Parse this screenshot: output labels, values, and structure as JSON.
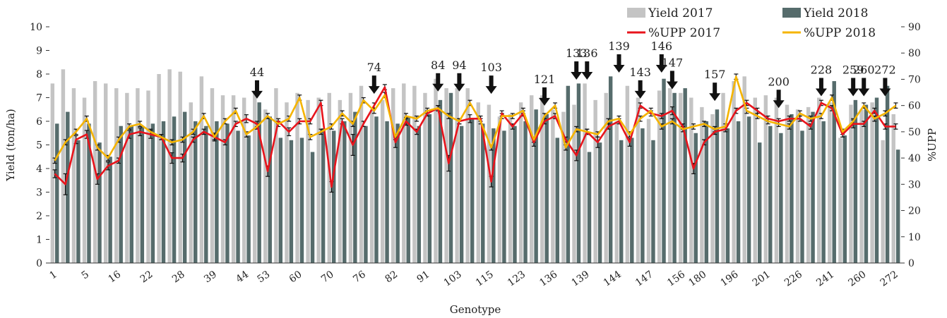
{
  "chart_data": {
    "type": "bar",
    "xlabel": "Genotype",
    "ylabel": "Yield (ton/ha)",
    "y2label": "%UPP",
    "ylim": [
      0,
      10
    ],
    "y2lim": [
      0,
      90
    ],
    "y_ticks": [
      "0",
      "1",
      "2",
      "3",
      "4",
      "5",
      "6",
      "7",
      "8",
      "9",
      "10"
    ],
    "y2_ticks": [
      "0",
      "10",
      "20",
      "30",
      "40",
      "50",
      "60",
      "70",
      "80",
      "90"
    ],
    "x_tick_labels": [
      "1",
      "5",
      "16",
      "22",
      "28",
      "39",
      "44",
      "53",
      "60",
      "70",
      "76",
      "82",
      "91",
      "103",
      "115",
      "123",
      "136",
      "139",
      "144",
      "147",
      "156",
      "180",
      "196",
      "201",
      "226",
      "241",
      "260",
      "272"
    ],
    "bar_count": 80,
    "legend_position": "top-right",
    "colors": {
      "yield_2017": "#c4c4c4",
      "yield_2018": "#566c6c",
      "upp_2017": "#e8141c",
      "upp_2018": "#f5b400",
      "arrow": "#111111"
    },
    "series": [
      {
        "name": "Yield 2017",
        "kind": "bar",
        "axis": "left",
        "values": [
          7.6,
          8.2,
          7.4,
          7.0,
          7.7,
          7.6,
          7.4,
          7.2,
          7.4,
          7.3,
          8.0,
          8.2,
          8.1,
          6.8,
          7.9,
          7.4,
          7.1,
          7.1,
          7.0,
          7.3,
          6.5,
          7.4,
          6.8,
          7.2,
          6.9,
          7.0,
          7.2,
          6.9,
          7.2,
          7.5,
          6.5,
          6.9,
          7.4,
          7.6,
          7.5,
          7.2,
          7.8,
          7.4,
          7.4,
          7.4,
          6.8,
          6.7,
          6.2,
          6.3,
          6.8,
          7.1,
          7.1,
          6.5,
          6.4,
          6.7,
          7.6,
          6.9,
          7.2,
          6.0,
          7.5,
          7.0,
          6.1,
          7.3,
          7.4,
          7.2,
          7.0,
          6.6,
          6.3,
          7.2,
          7.7,
          7.9,
          7.0,
          7.1,
          7.0,
          6.7,
          6.5,
          6.6,
          7.0,
          6.8,
          5.3,
          6.7,
          6.5,
          6.8,
          5.2,
          6.3
        ]
      },
      {
        "name": "Yield 2018",
        "kind": "bar",
        "axis": "left",
        "values": [
          5.9,
          6.4,
          5.2,
          5.9,
          5.1,
          4.5,
          5.8,
          5.8,
          5.8,
          5.9,
          6.0,
          6.2,
          6.4,
          6.0,
          5.8,
          6.0,
          5.9,
          5.6,
          5.4,
          6.8,
          6.2,
          5.3,
          5.2,
          5.3,
          4.7,
          5.7,
          5.6,
          6.0,
          6.4,
          5.8,
          6.2,
          6.0,
          5.9,
          6.2,
          5.8,
          6.3,
          6.9,
          7.2,
          5.8,
          6.1,
          5.9,
          5.7,
          5.6,
          5.8,
          6.0,
          6.5,
          6.3,
          5.3,
          7.5,
          7.6,
          4.7,
          5.1,
          7.9,
          5.2,
          5.3,
          5.7,
          5.2,
          7.8,
          7.2,
          7.4,
          5.5,
          6.0,
          6.5,
          5.7,
          6.0,
          6.2,
          5.1,
          5.8,
          5.5,
          6.3,
          5.6,
          6.4,
          6.0,
          7.7,
          5.4,
          6.9,
          6.7,
          7.0,
          7.5,
          4.8
        ]
      },
      {
        "name": "%UPP 2017",
        "kind": "line",
        "axis": "right",
        "values": [
          34,
          30,
          47,
          49,
          32,
          37,
          39,
          49,
          50,
          49,
          48,
          40,
          40,
          47,
          50,
          48,
          46,
          53,
          55,
          53,
          35,
          54,
          50,
          54,
          54,
          61,
          29,
          54,
          45,
          53,
          60,
          67,
          46,
          54,
          50,
          57,
          59,
          38,
          54,
          55,
          55,
          31,
          57,
          52,
          57,
          46,
          54,
          56,
          47,
          41,
          50,
          46,
          52,
          54,
          46,
          60,
          57,
          56,
          58,
          52,
          36,
          46,
          50,
          51,
          58,
          61,
          58,
          55,
          54,
          55,
          55,
          52,
          61,
          59,
          49,
          53,
          53,
          58,
          52,
          52
        ]
      },
      {
        "name": "%UPP 2018",
        "kind": "line",
        "axis": "right",
        "values": [
          39,
          46,
          50,
          55,
          44,
          40,
          47,
          52,
          53,
          50,
          48,
          46,
          47,
          50,
          56,
          48,
          54,
          58,
          49,
          52,
          56,
          53,
          55,
          63,
          48,
          50,
          52,
          57,
          53,
          62,
          58,
          64,
          48,
          56,
          55,
          58,
          59,
          56,
          54,
          61,
          54,
          44,
          56,
          56,
          58,
          47,
          56,
          60,
          44,
          51,
          50,
          49,
          54,
          55,
          49,
          55,
          58,
          52,
          54,
          51,
          52,
          53,
          51,
          52,
          71,
          58,
          56,
          54,
          53,
          52,
          57,
          55,
          56,
          63,
          50,
          54,
          60,
          55,
          57,
          60
        ]
      }
    ],
    "error_bars": {
      "upp_2017": [
        1.5,
        4,
        1.5,
        1.5,
        2,
        1.5,
        1,
        1.5,
        1.5,
        1.5,
        1,
        2,
        1.5,
        1,
        1,
        1.5,
        1,
        1,
        1.5,
        1,
        2,
        1,
        1.5,
        1,
        1,
        1,
        2,
        1,
        4,
        1,
        1,
        1,
        2,
        1.5,
        1,
        1,
        1,
        3,
        1,
        1.5,
        1,
        2,
        1,
        1,
        1,
        1.5,
        1,
        1,
        1,
        2,
        1,
        2,
        1,
        1,
        1.5,
        1,
        1,
        1,
        1.5,
        1,
        2,
        1,
        1,
        1,
        1,
        1,
        1,
        1,
        1,
        1,
        1,
        1,
        1,
        1,
        1,
        1.5,
        1,
        1,
        1,
        1
      ],
      "upp_2018": [
        1,
        1,
        1,
        1,
        1,
        1,
        1,
        1,
        1,
        1,
        1,
        1,
        1,
        1,
        1,
        1,
        1,
        1,
        1,
        1,
        1,
        1,
        1,
        1,
        1,
        1,
        1,
        1,
        1,
        1,
        1,
        1,
        1,
        1,
        1,
        1,
        1,
        1,
        1,
        1,
        1,
        1,
        1,
        1,
        1,
        1,
        1,
        1,
        1,
        1,
        1,
        1,
        1,
        1,
        1,
        1,
        1,
        1,
        1,
        1,
        1,
        1,
        1,
        1,
        1,
        1,
        1,
        1,
        1,
        1,
        1,
        1,
        1,
        1,
        1,
        1,
        1,
        1,
        1,
        1
      ]
    },
    "annotations": [
      {
        "label": "44",
        "bar_index": 19,
        "y": 6.9
      },
      {
        "label": "74",
        "bar_index": 30,
        "y": 7.1
      },
      {
        "label": "84",
        "bar_index": 36,
        "y": 7.2
      },
      {
        "label": "94",
        "bar_index": 38,
        "y": 7.2
      },
      {
        "label": "103",
        "bar_index": 41,
        "y": 7.1
      },
      {
        "label": "121",
        "bar_index": 46,
        "y": 6.6
      },
      {
        "label": "133",
        "bar_index": 49,
        "y": 7.7
      },
      {
        "label": "136",
        "bar_index": 50,
        "y": 7.7
      },
      {
        "label": "139",
        "bar_index": 53,
        "y": 8.0
      },
      {
        "label": "143",
        "bar_index": 55,
        "y": 6.9
      },
      {
        "label": "146",
        "bar_index": 57,
        "y": 8.0
      },
      {
        "label": "147",
        "bar_index": 58,
        "y": 7.3
      },
      {
        "label": "157",
        "bar_index": 62,
        "y": 6.8
      },
      {
        "label": "200",
        "bar_index": 68,
        "y": 6.5
      },
      {
        "label": "228",
        "bar_index": 72,
        "y": 7.0
      },
      {
        "label": "259",
        "bar_index": 75,
        "y": 7.0
      },
      {
        "label": "260",
        "bar_index": 76,
        "y": 7.0
      },
      {
        "label": "272",
        "bar_index": 78,
        "y": 7.0
      }
    ]
  }
}
